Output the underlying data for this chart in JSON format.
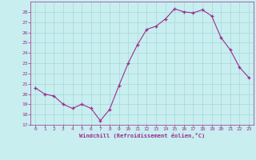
{
  "x": [
    0,
    1,
    2,
    3,
    4,
    5,
    6,
    7,
    8,
    9,
    10,
    11,
    12,
    13,
    14,
    15,
    16,
    17,
    18,
    19,
    20,
    21,
    22,
    23
  ],
  "y": [
    20.6,
    20.0,
    19.8,
    19.0,
    18.6,
    19.0,
    18.6,
    17.4,
    18.5,
    20.8,
    23.0,
    24.8,
    26.3,
    26.6,
    27.3,
    28.3,
    28.0,
    27.9,
    28.2,
    27.6,
    25.5,
    24.3,
    22.6,
    21.6
  ],
  "line_color": "#9B2D8E",
  "marker": "+",
  "marker_color": "#9B2D8E",
  "bg_color": "#C8EEF0",
  "grid_color": "#A8D8DA",
  "xlabel": "Windchill (Refroidissement éolien,°C)",
  "xlabel_color": "#9B2D8E",
  "tick_color": "#9B2D8E",
  "ylim": [
    17,
    29
  ],
  "yticks": [
    17,
    18,
    19,
    20,
    21,
    22,
    23,
    24,
    25,
    26,
    27,
    28
  ],
  "xlim": [
    -0.5,
    23.5
  ],
  "xticks": [
    0,
    1,
    2,
    3,
    4,
    5,
    6,
    7,
    8,
    9,
    10,
    11,
    12,
    13,
    14,
    15,
    16,
    17,
    18,
    19,
    20,
    21,
    22,
    23
  ]
}
